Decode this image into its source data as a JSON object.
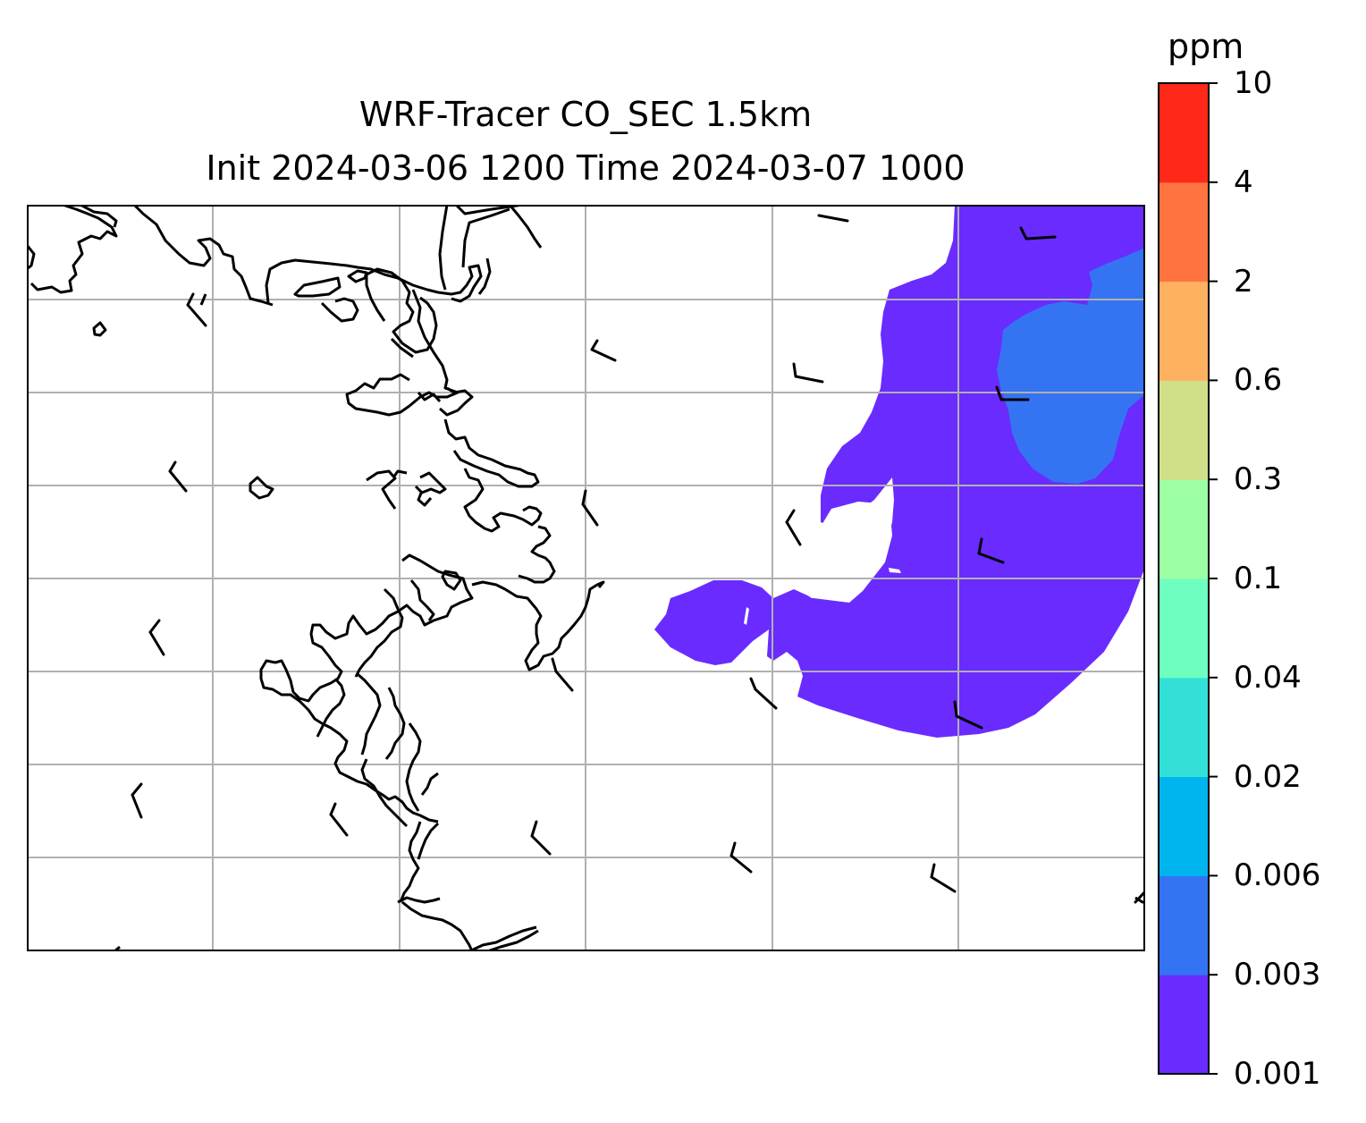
{
  "title": "WRF-Tracer CO_SEC 1.5km",
  "subtitle": "Init 2024-03-06 1200 Time 2024-03-07 1000",
  "colorbar": {
    "unit": "ppm",
    "levels": [
      "0.001",
      "0.003",
      "0.006",
      "0.02",
      "0.04",
      "0.1",
      "0.3",
      "0.6",
      "2",
      "4",
      "10"
    ],
    "colors": [
      "#6a2bff",
      "#3474f3",
      "#00b4ee",
      "#33e0d8",
      "#6effc0",
      "#9dffa4",
      "#d0e088",
      "#ffb162",
      "#ff7340",
      "#ff2819"
    ]
  },
  "map": {
    "shaded_regions": [
      {
        "range": "0.001-0.003",
        "color": "#6a2bff"
      },
      {
        "range": "0.003-0.006",
        "color": "#3474f3"
      }
    ],
    "gridlines": true,
    "coastline_color": "#000000",
    "gridline_color": "#b0b0b0",
    "wind_barbs": true
  }
}
